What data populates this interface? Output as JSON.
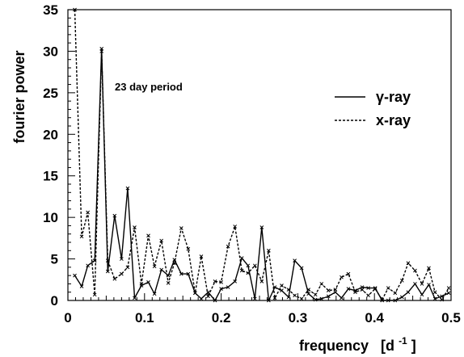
{
  "chart_data": {
    "type": "line",
    "title": "",
    "xlabel": "frequency",
    "xlabel_unit_text": "[d",
    "xlabel_unit_sup": "-1",
    "xlabel_unit_close": "]",
    "ylabel": "fourier power",
    "xlim": [
      0,
      0.5
    ],
    "ylim": [
      0,
      35
    ],
    "x_ticks": [
      "0",
      "0.1",
      "0.2",
      "0.3",
      "0.4",
      "0.5"
    ],
    "y_ticks": [
      "0",
      "5",
      "10",
      "15",
      "20",
      "25",
      "30",
      "35"
    ],
    "grid": false,
    "legend_position": "upper-right",
    "annotation": "23 day period",
    "series": [
      {
        "name": "γ-ray",
        "style": "solid",
        "color": "#000000",
        "x": [
          0.009,
          0.018,
          0.026,
          0.035,
          0.044,
          0.052,
          0.061,
          0.07,
          0.078,
          0.087,
          0.096,
          0.105,
          0.113,
          0.122,
          0.131,
          0.139,
          0.148,
          0.157,
          0.166,
          0.174,
          0.183,
          0.192,
          0.2,
          0.209,
          0.218,
          0.227,
          0.235,
          0.244,
          0.253,
          0.262,
          0.27,
          0.279,
          0.288,
          0.296,
          0.305,
          0.314,
          0.323,
          0.331,
          0.34,
          0.349,
          0.357,
          0.366,
          0.375,
          0.384,
          0.392,
          0.401,
          0.41,
          0.418,
          0.427,
          0.436,
          0.444,
          0.453,
          0.462,
          0.471,
          0.479,
          0.488,
          0.497
        ],
        "y": [
          3.0,
          1.7,
          4.2,
          4.8,
          30.3,
          3.5,
          10.2,
          5.0,
          13.5,
          0.3,
          1.8,
          2.2,
          0.8,
          3.7,
          3.0,
          4.9,
          3.2,
          3.2,
          0.9,
          0.2,
          1.0,
          0.0,
          1.4,
          1.6,
          2.3,
          5.1,
          4.2,
          0.2,
          8.8,
          0.0,
          1.6,
          1.2,
          0.4,
          4.8,
          3.9,
          0.8,
          0.1,
          0.2,
          0.5,
          1.0,
          0.3,
          1.4,
          1.2,
          1.6,
          1.5,
          1.5,
          0.0,
          0.0,
          0.0,
          0.4,
          1.0,
          2.0,
          0.7,
          1.9,
          0.2,
          0.5,
          0.9
        ]
      },
      {
        "name": "x-ray",
        "style": "dashed",
        "color": "#000000",
        "x": [
          0.009,
          0.018,
          0.026,
          0.035,
          0.044,
          0.052,
          0.061,
          0.07,
          0.078,
          0.087,
          0.096,
          0.105,
          0.113,
          0.122,
          0.131,
          0.139,
          0.148,
          0.157,
          0.166,
          0.174,
          0.183,
          0.192,
          0.2,
          0.209,
          0.218,
          0.227,
          0.235,
          0.244,
          0.253,
          0.262,
          0.27,
          0.279,
          0.288,
          0.296,
          0.305,
          0.314,
          0.323,
          0.331,
          0.34,
          0.349,
          0.357,
          0.366,
          0.375,
          0.384,
          0.392,
          0.401,
          0.41,
          0.418,
          0.427,
          0.436,
          0.444,
          0.453,
          0.462,
          0.471,
          0.479,
          0.488,
          0.497
        ],
        "y": [
          35.0,
          7.7,
          10.6,
          0.7,
          30.0,
          4.8,
          2.6,
          3.2,
          4.0,
          8.8,
          2.0,
          7.8,
          4.1,
          7.2,
          2.1,
          4.5,
          8.7,
          6.2,
          0.9,
          5.3,
          0.5,
          2.3,
          2.2,
          6.5,
          8.9,
          3.6,
          3.3,
          4.2,
          2.3,
          6.0,
          0.3,
          1.8,
          1.3,
          0.6,
          0.2,
          1.3,
          0.7,
          2.0,
          1.2,
          1.3,
          2.8,
          3.2,
          1.0,
          1.3,
          0.6,
          1.4,
          0.1,
          1.5,
          0.9,
          2.4,
          4.5,
          3.6,
          2.0,
          3.9,
          1.0,
          0.1,
          1.5
        ]
      }
    ]
  }
}
